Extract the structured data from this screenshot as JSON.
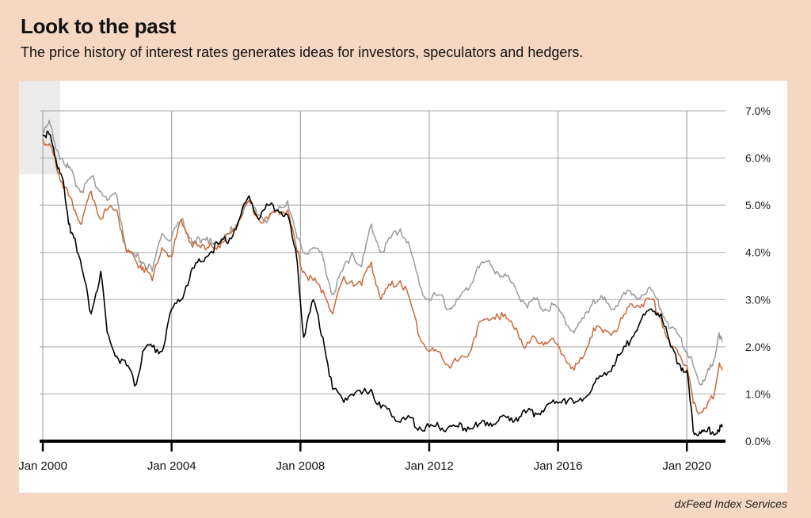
{
  "header": {
    "title": "Look to the past",
    "subtitle": "The price history of interest rates generates ideas for investors, speculators and hedgers."
  },
  "footer": {
    "source": "dxFeed Index Services"
  },
  "colors": {
    "background": "#f5d7c4",
    "black_series": "#000000",
    "orange_series": "#c8693a",
    "gray_series": "#9a9a9a",
    "grid": "#a8a8a8"
  },
  "chart_data": {
    "type": "line",
    "title": "Look to the past",
    "subtitle": "The price history of interest rates generates ideas for investors, speculators and hedgers.",
    "xlabel": "",
    "ylabel": "",
    "x_ticks": [
      "Jan 2000",
      "Jan 2004",
      "Jan 2008",
      "Jan 2012",
      "Jan 2016",
      "Jan 2020"
    ],
    "y_ticks": [
      "0.0%",
      "1.0%",
      "2.0%",
      "3.0%",
      "4.0%",
      "5.0%",
      "6.0%",
      "7.0%"
    ],
    "ylim": [
      0,
      7
    ],
    "xlim": [
      1999.9,
      2021.2
    ],
    "y_axis_position": "right",
    "grid": true,
    "legend": "none",
    "series": [
      {
        "color": "#9a9a9a",
        "x": [
          2000.0,
          2000.2,
          2000.4,
          2000.6,
          2000.8,
          2001.0,
          2001.2,
          2001.5,
          2001.8,
          2002.0,
          2002.3,
          2002.6,
          2002.9,
          2003.1,
          2003.4,
          2003.7,
          2004.0,
          2004.3,
          2004.6,
          2004.9,
          2005.2,
          2005.5,
          2005.8,
          2006.1,
          2006.4,
          2006.7,
          2007.0,
          2007.3,
          2007.6,
          2007.9,
          2008.1,
          2008.4,
          2008.7,
          2009.0,
          2009.3,
          2009.6,
          2009.9,
          2010.2,
          2010.5,
          2010.8,
          2011.1,
          2011.4,
          2011.7,
          2012.0,
          2012.3,
          2012.6,
          2012.9,
          2013.2,
          2013.5,
          2013.8,
          2014.1,
          2014.4,
          2014.7,
          2015.0,
          2015.3,
          2015.6,
          2015.9,
          2016.2,
          2016.5,
          2016.8,
          2017.1,
          2017.4,
          2017.7,
          2018.0,
          2018.3,
          2018.6,
          2018.9,
          2019.2,
          2019.5,
          2019.8,
          2020.0,
          2020.2,
          2020.4,
          2020.6,
          2020.8,
          2021.0,
          2021.1
        ],
        "values": [
          6.6,
          6.8,
          6.2,
          6.0,
          5.8,
          5.5,
          5.3,
          5.6,
          5.3,
          5.1,
          5.2,
          4.0,
          3.9,
          3.8,
          3.6,
          4.4,
          4.3,
          4.7,
          4.3,
          4.2,
          4.3,
          4.2,
          4.4,
          4.7,
          5.1,
          4.8,
          4.7,
          4.9,
          5.1,
          4.3,
          4.0,
          4.1,
          3.9,
          3.1,
          3.6,
          4.0,
          3.7,
          4.6,
          4.0,
          4.3,
          4.5,
          4.1,
          3.3,
          3.0,
          3.1,
          2.8,
          3.0,
          3.2,
          3.7,
          3.8,
          3.6,
          3.5,
          3.2,
          2.9,
          3.0,
          2.8,
          2.9,
          2.6,
          2.3,
          2.6,
          3.0,
          3.0,
          2.8,
          3.1,
          3.1,
          3.1,
          3.2,
          2.8,
          2.4,
          2.2,
          1.9,
          1.6,
          1.2,
          1.4,
          1.6,
          2.3,
          2.1
        ]
      },
      {
        "color": "#c8693a",
        "x": [
          2000.0,
          2000.2,
          2000.4,
          2000.6,
          2000.8,
          2001.0,
          2001.2,
          2001.5,
          2001.8,
          2002.0,
          2002.3,
          2002.6,
          2002.9,
          2003.1,
          2003.4,
          2003.7,
          2004.0,
          2004.3,
          2004.6,
          2004.9,
          2005.2,
          2005.5,
          2005.8,
          2006.1,
          2006.4,
          2006.7,
          2007.0,
          2007.3,
          2007.6,
          2007.9,
          2008.1,
          2008.4,
          2008.7,
          2009.0,
          2009.3,
          2009.6,
          2009.9,
          2010.2,
          2010.5,
          2010.8,
          2011.1,
          2011.4,
          2011.7,
          2012.0,
          2012.3,
          2012.6,
          2012.9,
          2013.2,
          2013.5,
          2013.8,
          2014.1,
          2014.4,
          2014.7,
          2015.0,
          2015.3,
          2015.6,
          2015.9,
          2016.2,
          2016.5,
          2016.8,
          2017.1,
          2017.4,
          2017.7,
          2018.0,
          2018.3,
          2018.6,
          2018.9,
          2019.2,
          2019.5,
          2019.8,
          2020.0,
          2020.2,
          2020.4,
          2020.6,
          2020.8,
          2021.0,
          2021.1
        ],
        "values": [
          6.4,
          6.3,
          5.9,
          5.5,
          5.2,
          4.9,
          4.6,
          5.3,
          4.7,
          4.9,
          4.9,
          4.0,
          3.8,
          3.7,
          3.4,
          4.1,
          3.9,
          4.7,
          4.2,
          4.1,
          4.2,
          4.1,
          4.4,
          4.7,
          5.1,
          4.7,
          4.7,
          4.9,
          4.9,
          4.0,
          3.6,
          3.4,
          3.2,
          2.7,
          3.4,
          3.4,
          3.3,
          3.8,
          3.0,
          3.3,
          3.4,
          3.0,
          2.2,
          1.9,
          1.9,
          1.6,
          1.7,
          1.8,
          2.4,
          2.6,
          2.7,
          2.6,
          2.4,
          2.0,
          2.2,
          2.1,
          2.1,
          1.8,
          1.5,
          1.8,
          2.4,
          2.3,
          2.3,
          2.6,
          2.9,
          2.9,
          3.0,
          2.6,
          2.0,
          1.8,
          1.6,
          0.8,
          0.6,
          0.7,
          0.9,
          1.6,
          1.5
        ]
      },
      {
        "color": "#000000",
        "x": [
          2000.0,
          2000.2,
          2000.4,
          2000.6,
          2000.8,
          2001.0,
          2001.2,
          2001.5,
          2001.8,
          2002.0,
          2002.3,
          2002.6,
          2002.9,
          2003.1,
          2003.4,
          2003.7,
          2004.0,
          2004.3,
          2004.6,
          2004.9,
          2005.2,
          2005.5,
          2005.8,
          2006.1,
          2006.4,
          2006.7,
          2007.0,
          2007.3,
          2007.6,
          2007.9,
          2008.1,
          2008.4,
          2008.7,
          2009.0,
          2009.3,
          2009.6,
          2009.9,
          2010.2,
          2010.5,
          2010.8,
          2011.1,
          2011.4,
          2011.7,
          2012.0,
          2012.3,
          2012.6,
          2012.9,
          2013.2,
          2013.5,
          2013.8,
          2014.1,
          2014.4,
          2014.7,
          2015.0,
          2015.3,
          2015.6,
          2015.9,
          2016.2,
          2016.5,
          2016.8,
          2017.1,
          2017.4,
          2017.7,
          2018.0,
          2018.3,
          2018.6,
          2018.9,
          2019.2,
          2019.5,
          2019.8,
          2020.0,
          2020.2,
          2020.4,
          2020.6,
          2020.8,
          2021.0,
          2021.1
        ],
        "values": [
          6.5,
          6.5,
          6.0,
          5.6,
          4.6,
          4.3,
          3.7,
          2.7,
          3.6,
          2.3,
          1.8,
          1.6,
          1.2,
          1.9,
          2.0,
          1.9,
          2.8,
          3.0,
          3.6,
          3.8,
          4.0,
          4.2,
          4.3,
          4.7,
          5.2,
          4.7,
          5.0,
          4.9,
          4.8,
          3.8,
          2.2,
          3.0,
          2.2,
          1.1,
          0.9,
          1.0,
          1.0,
          1.1,
          0.7,
          0.6,
          0.4,
          0.5,
          0.3,
          0.3,
          0.3,
          0.3,
          0.3,
          0.3,
          0.3,
          0.4,
          0.4,
          0.5,
          0.5,
          0.6,
          0.6,
          0.7,
          0.8,
          0.9,
          0.8,
          0.9,
          1.2,
          1.4,
          1.6,
          1.9,
          2.2,
          2.6,
          2.8,
          2.7,
          2.0,
          1.6,
          1.5,
          0.2,
          0.2,
          0.2,
          0.2,
          0.2,
          0.3
        ]
      }
    ]
  }
}
